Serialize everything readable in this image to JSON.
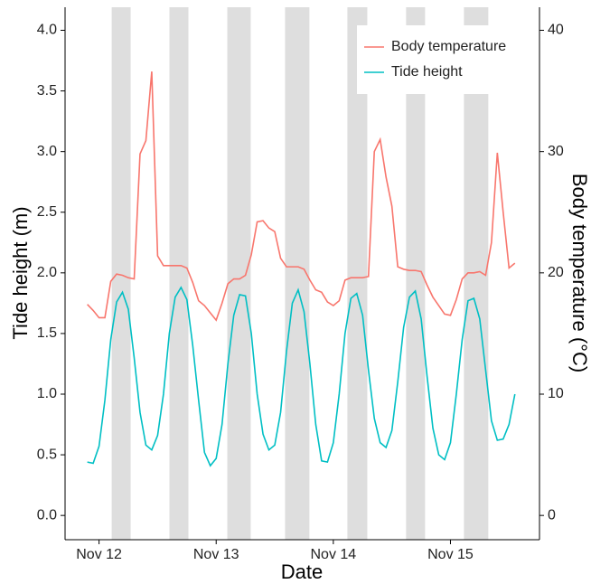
{
  "chart_data": {
    "type": "line",
    "x_label": "Date",
    "y_label": "Tide height (m)",
    "y2_label": "Body temperature (°C)",
    "xlim": [
      11.71,
      15.76
    ],
    "xticks": [
      {
        "value": 12,
        "label": "Nov 12"
      },
      {
        "value": 13,
        "label": "Nov 13"
      },
      {
        "value": 14,
        "label": "Nov 14"
      },
      {
        "value": 15,
        "label": "Nov 15"
      }
    ],
    "ylim": [
      -0.2,
      4.19
    ],
    "yticks": [
      {
        "value": 0,
        "label": "0.0"
      },
      {
        "value": 0.5,
        "label": "0.5"
      },
      {
        "value": 1,
        "label": "1.0"
      },
      {
        "value": 1.5,
        "label": "1.5"
      },
      {
        "value": 2,
        "label": "2.0"
      },
      {
        "value": 2.5,
        "label": "2.5"
      },
      {
        "value": 3,
        "label": "3.0"
      },
      {
        "value": 3.5,
        "label": "3.5"
      },
      {
        "value": 4,
        "label": "4.0"
      }
    ],
    "y2lim": [
      -2,
      41.9
    ],
    "y2ticks": [
      0,
      10,
      20,
      30,
      40
    ],
    "shading": [
      [
        12.108,
        12.27
      ],
      [
        12.601,
        12.763
      ],
      [
        13.095,
        13.295
      ],
      [
        13.588,
        13.796
      ],
      [
        14.12,
        14.29
      ],
      [
        14.621,
        14.783
      ],
      [
        15.115,
        15.323
      ]
    ],
    "shading_color": "#dedede",
    "legend": "top-right",
    "x": [
      11.9,
      11.95,
      12,
      12.05,
      12.1,
      12.15,
      12.2,
      12.25,
      12.3,
      12.35,
      12.4,
      12.45,
      12.5,
      12.55,
      12.6,
      12.65,
      12.7,
      12.75,
      12.8,
      12.85,
      12.9,
      12.95,
      13,
      13.05,
      13.1,
      13.15,
      13.2,
      13.25,
      13.3,
      13.35,
      13.4,
      13.45,
      13.5,
      13.55,
      13.6,
      13.65,
      13.7,
      13.75,
      13.8,
      13.85,
      13.9,
      13.95,
      14,
      14.05,
      14.1,
      14.15,
      14.2,
      14.25,
      14.3,
      14.35,
      14.4,
      14.45,
      14.5,
      14.55,
      14.6,
      14.65,
      14.7,
      14.75,
      14.8,
      14.85,
      14.9,
      14.95,
      15,
      15.05,
      15.1,
      15.15,
      15.2,
      15.25,
      15.3,
      15.35,
      15.4,
      15.45,
      15.5,
      15.55
    ],
    "series": [
      {
        "name": "Body temperature",
        "color": "#F8766D",
        "axis": "y2",
        "values": [
          17.4,
          16.9,
          16.3,
          16.3,
          19.3,
          19.9,
          19.8,
          19.6,
          19.5,
          29.8,
          30.9,
          36.6,
          21.4,
          20.6,
          20.6,
          20.6,
          20.6,
          20.4,
          19.2,
          17.7,
          17.3,
          16.7,
          16.1,
          17.5,
          19.1,
          19.5,
          19.5,
          19.8,
          21.5,
          24.2,
          24.3,
          23.7,
          23.4,
          21.2,
          20.5,
          20.5,
          20.5,
          20.3,
          19.4,
          18.6,
          18.4,
          17.6,
          17.3,
          17.7,
          19.4,
          19.6,
          19.6,
          19.6,
          19.7,
          30.0,
          31.0,
          27.9,
          25.5,
          20.5,
          20.3,
          20.2,
          20.2,
          20.1,
          19.0,
          18.0,
          17.3,
          16.6,
          16.5,
          17.8,
          19.5,
          20.0,
          20.0,
          20.1,
          19.8,
          22.5,
          29.9,
          25.0,
          20.4,
          20.8
        ]
      },
      {
        "name": "Tide height",
        "color": "#00BFC4",
        "axis": "y",
        "values": [
          0.44,
          0.43,
          0.57,
          0.95,
          1.45,
          1.76,
          1.84,
          1.7,
          1.3,
          0.85,
          0.58,
          0.54,
          0.66,
          1.0,
          1.5,
          1.8,
          1.88,
          1.78,
          1.4,
          0.95,
          0.52,
          0.41,
          0.47,
          0.75,
          1.25,
          1.65,
          1.82,
          1.81,
          1.5,
          1.0,
          0.67,
          0.54,
          0.58,
          0.85,
          1.35,
          1.75,
          1.86,
          1.68,
          1.25,
          0.75,
          0.45,
          0.44,
          0.6,
          1.0,
          1.5,
          1.79,
          1.83,
          1.65,
          1.2,
          0.8,
          0.6,
          0.56,
          0.7,
          1.1,
          1.55,
          1.8,
          1.85,
          1.62,
          1.15,
          0.72,
          0.5,
          0.46,
          0.6,
          1.0,
          1.45,
          1.77,
          1.79,
          1.62,
          1.2,
          0.78,
          0.62,
          0.63,
          0.75,
          1.0
        ]
      }
    ]
  }
}
